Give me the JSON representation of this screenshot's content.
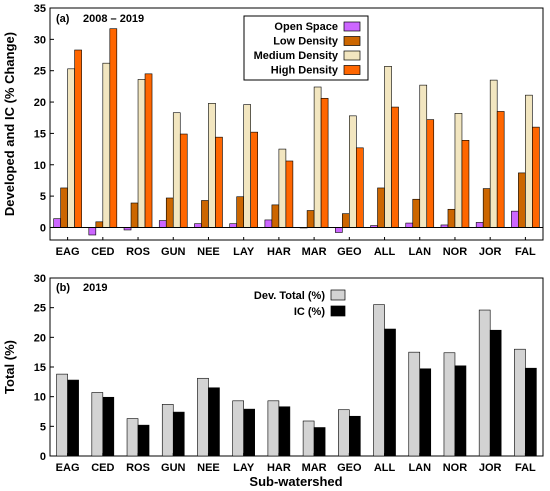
{
  "chart_data": [
    {
      "type": "bar",
      "panel_label": "(a)",
      "title": "2008 – 2019",
      "ylabel": "Developed and IC (% Change)",
      "xlabel": "",
      "ylim": [
        -2,
        35
      ],
      "yticks": [
        0,
        5,
        10,
        15,
        20,
        25,
        30,
        35
      ],
      "categories": [
        "EAG",
        "CED",
        "ROS",
        "GUN",
        "NEE",
        "LAY",
        "HAR",
        "MAR",
        "GEO",
        "ALL",
        "LAN",
        "NOR",
        "JOR",
        "FAL"
      ],
      "legend_position": "top-center",
      "series": [
        {
          "name": "Open Space",
          "color": "#cc66ff",
          "values": [
            1.4,
            -1.2,
            -0.4,
            1.1,
            0.6,
            0.6,
            1.2,
            0.0,
            -0.8,
            0.3,
            0.7,
            0.4,
            0.8,
            2.6
          ]
        },
        {
          "name": "Low Density",
          "color": "#cc6600",
          "values": [
            6.3,
            0.9,
            3.9,
            4.7,
            4.3,
            4.9,
            3.6,
            2.7,
            2.2,
            6.3,
            4.5,
            2.9,
            6.2,
            8.7
          ]
        },
        {
          "name": "Medium Density",
          "color": "#f2e6c0",
          "values": [
            25.3,
            26.2,
            23.6,
            18.3,
            19.8,
            19.6,
            12.5,
            22.4,
            17.8,
            25.7,
            22.7,
            18.2,
            23.5,
            21.1
          ]
        },
        {
          "name": "High Density",
          "color": "#ff6600",
          "values": [
            28.3,
            31.7,
            24.5,
            14.9,
            14.4,
            15.2,
            10.6,
            20.6,
            12.7,
            19.2,
            17.2,
            13.9,
            18.5,
            16.0
          ]
        }
      ]
    },
    {
      "type": "bar",
      "panel_label": "(b)",
      "title": "2019",
      "ylabel": "Total (%)",
      "xlabel": "Sub-watershed",
      "ylim": [
        0,
        30
      ],
      "yticks": [
        0,
        5,
        10,
        15,
        20,
        25,
        30
      ],
      "categories": [
        "EAG",
        "CED",
        "ROS",
        "GUN",
        "NEE",
        "LAY",
        "HAR",
        "MAR",
        "GEO",
        "ALL",
        "LAN",
        "NOR",
        "JOR",
        "FAL"
      ],
      "legend_position": "top-center",
      "series": [
        {
          "name": "Dev. Total (%)",
          "color": "#d3d3d3",
          "values": [
            13.8,
            10.7,
            6.3,
            8.7,
            13.1,
            9.3,
            9.3,
            5.9,
            7.8,
            25.5,
            17.5,
            17.4,
            24.6,
            18.0
          ]
        },
        {
          "name": "IC (%)",
          "color": "#000000",
          "values": [
            12.8,
            9.9,
            5.2,
            7.4,
            11.5,
            7.9,
            8.3,
            4.8,
            6.7,
            21.4,
            14.7,
            15.2,
            21.2,
            14.8
          ]
        }
      ]
    }
  ]
}
